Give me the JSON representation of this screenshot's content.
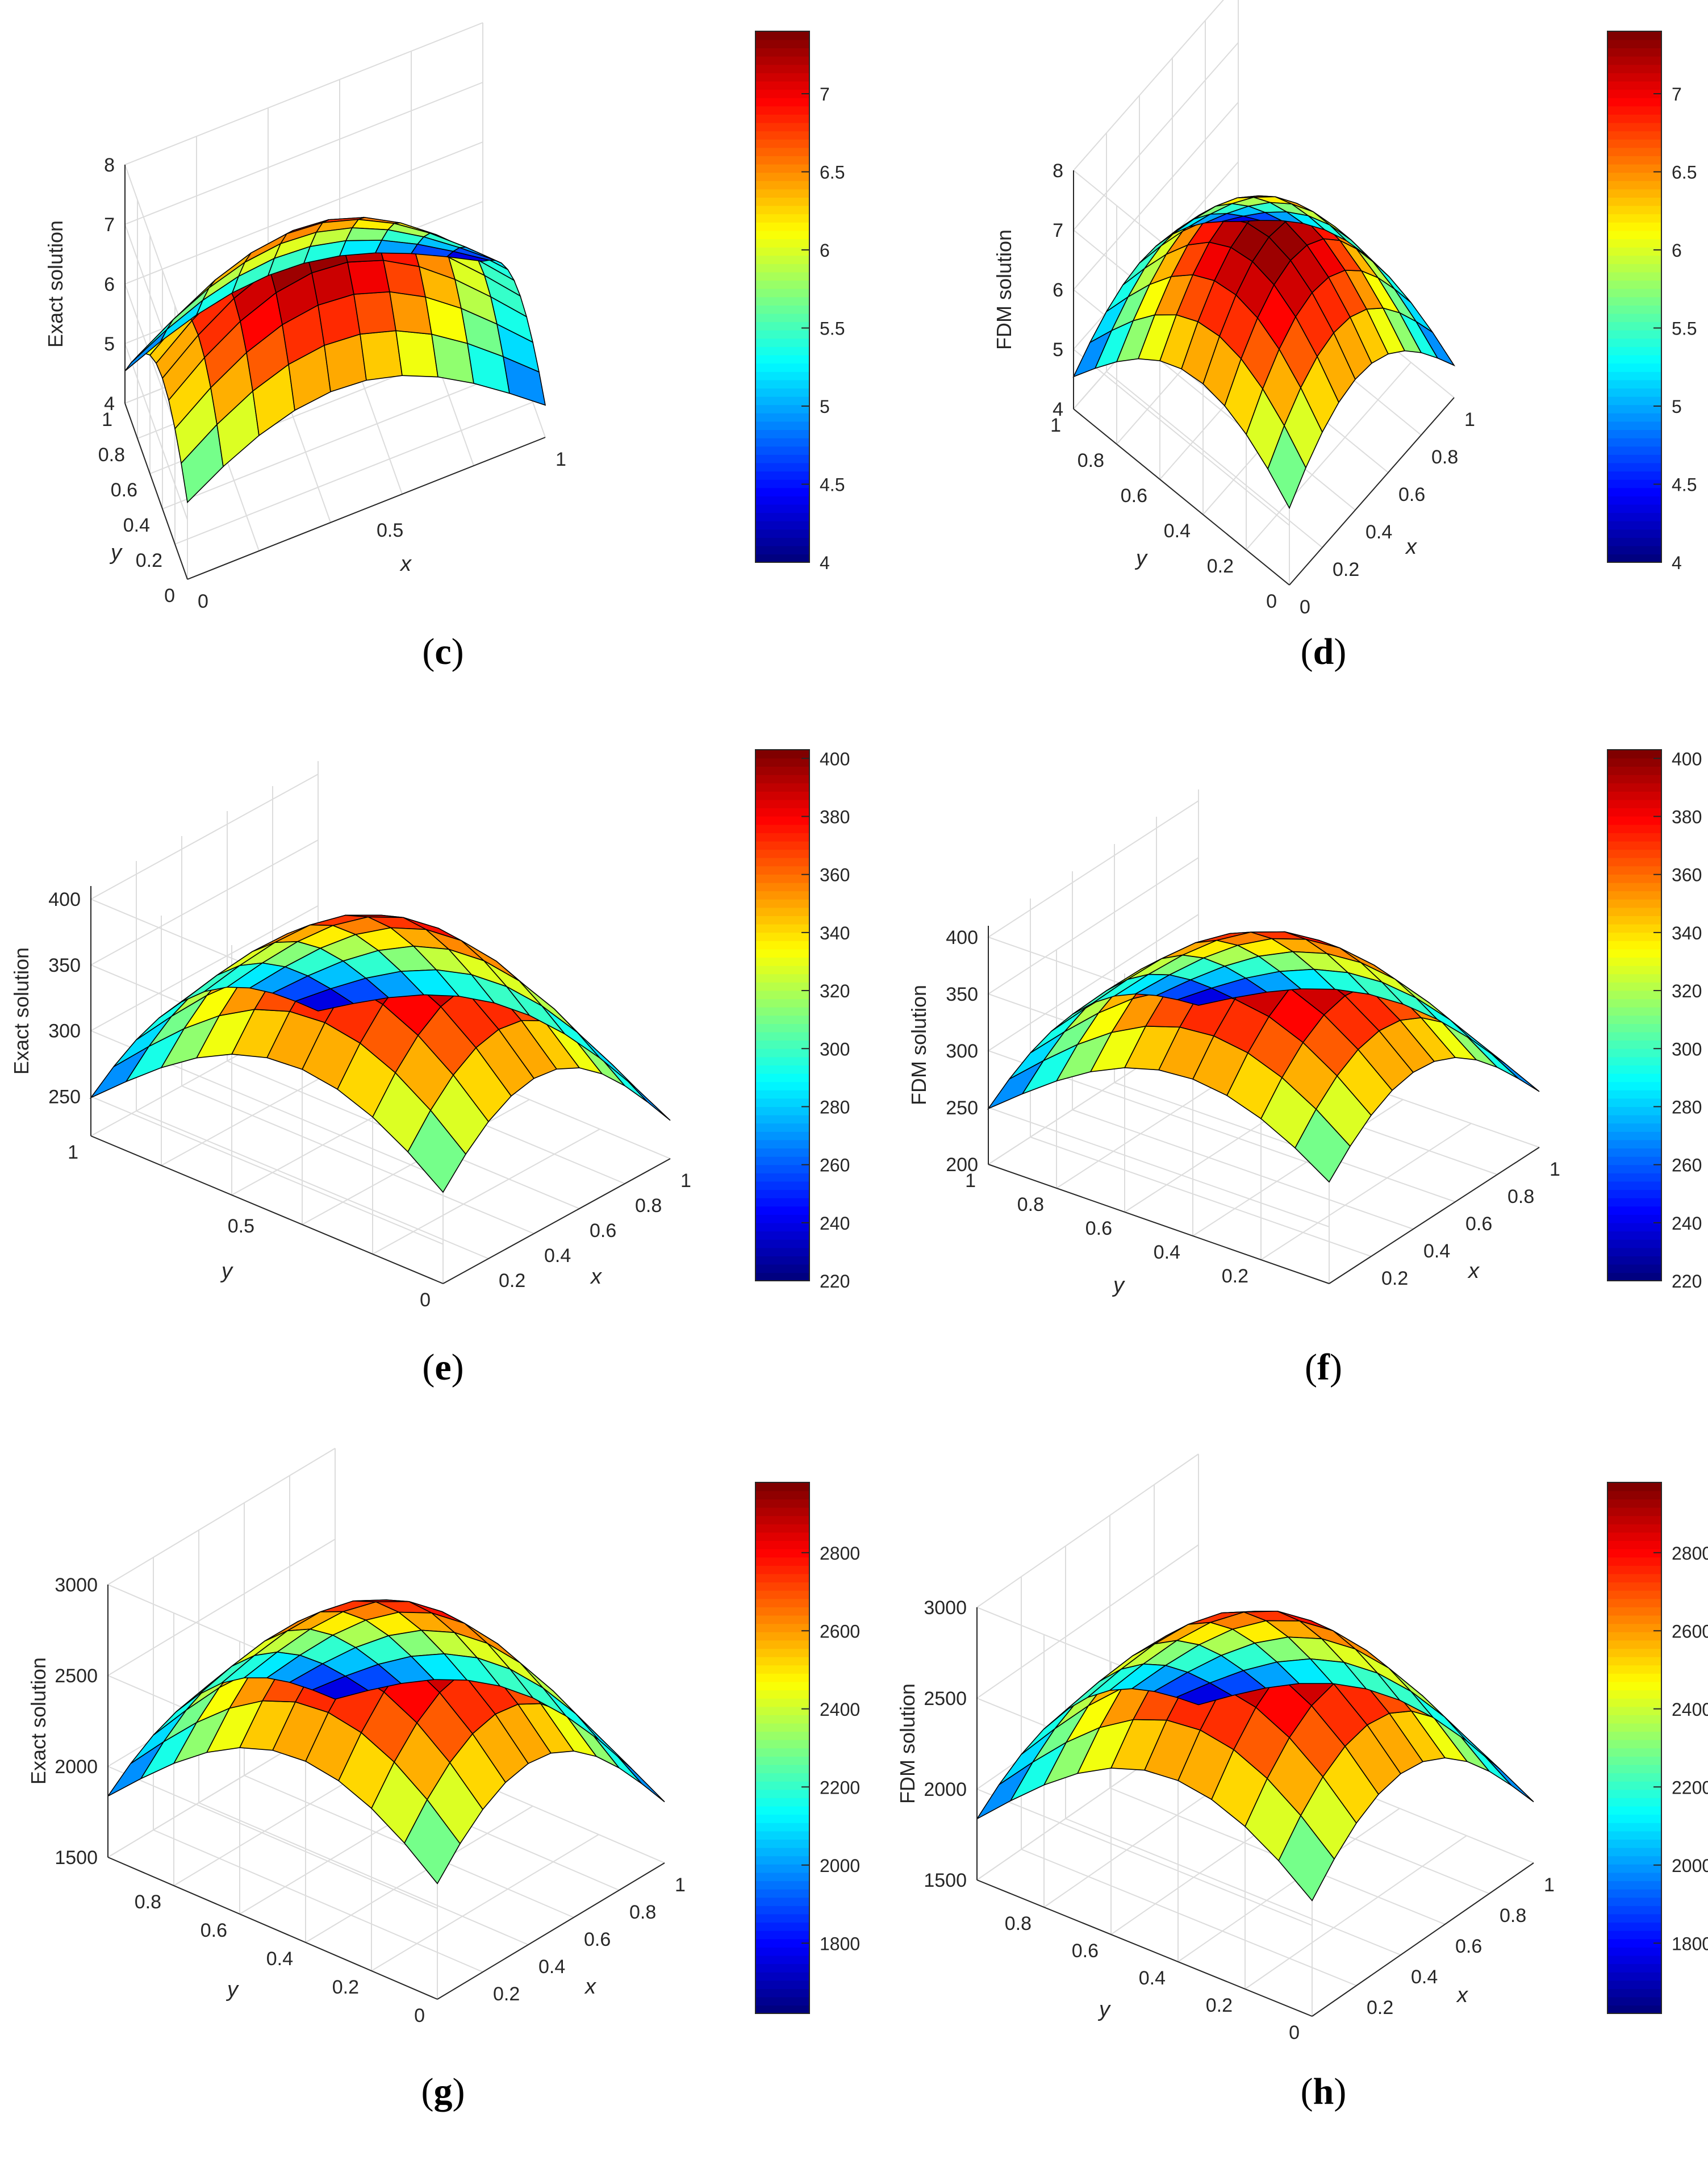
{
  "colors": {
    "axis": "#262626",
    "grid": "#dcdcdc",
    "edge": "#000000"
  },
  "colormap": "jet",
  "panels": [
    {
      "id": "c",
      "caption": "c",
      "zlabel": "Exact solution",
      "xlabel": "x",
      "ylabel": "y",
      "zticks": [
        "4",
        "5",
        "6",
        "7",
        "8"
      ],
      "xticks": [
        "0",
        "0.5",
        "1"
      ],
      "yticks": [
        "0",
        "0.2",
        "0.4",
        "0.6",
        "0.8",
        "1"
      ],
      "cbar_ticks": [
        "4",
        "4.5",
        "5",
        "5.5",
        "6",
        "6.5",
        "7"
      ]
    },
    {
      "id": "d",
      "caption": "d",
      "zlabel": "FDM solution",
      "xlabel": "x",
      "ylabel": "y",
      "zticks": [
        "4",
        "5",
        "6",
        "7",
        "8"
      ],
      "xticks": [
        "0",
        "0.2",
        "0.4",
        "0.6",
        "0.8",
        "1"
      ],
      "yticks": [
        "0",
        "0.2",
        "0.4",
        "0.6",
        "0.8",
        "1"
      ],
      "cbar_ticks": [
        "4",
        "4.5",
        "5",
        "5.5",
        "6",
        "6.5",
        "7"
      ]
    },
    {
      "id": "e",
      "caption": "e",
      "zlabel": "Exact solution",
      "xlabel": "x",
      "ylabel": "y",
      "zticks": [
        "250",
        "300",
        "350",
        "400"
      ],
      "xticks": [
        "0.2",
        "0.4",
        "0.6",
        "0.8",
        "1"
      ],
      "yticks": [
        "0",
        "0.5",
        "1"
      ],
      "cbar_ticks": [
        "220",
        "240",
        "260",
        "280",
        "300",
        "320",
        "340",
        "360",
        "380",
        "400"
      ]
    },
    {
      "id": "f",
      "caption": "f",
      "zlabel": "FDM solution",
      "xlabel": "x",
      "ylabel": "y",
      "zticks": [
        "200",
        "250",
        "300",
        "350",
        "400"
      ],
      "xticks": [
        "0.2",
        "0.4",
        "0.6",
        "0.8",
        "1"
      ],
      "yticks": [
        "0.2",
        "0.4",
        "0.6",
        "0.8",
        "1"
      ],
      "cbar_ticks": [
        "220",
        "240",
        "260",
        "280",
        "300",
        "320",
        "340",
        "360",
        "380",
        "400"
      ]
    },
    {
      "id": "g",
      "caption": "g",
      "zlabel": "Exact solution",
      "xlabel": "x",
      "ylabel": "y",
      "zticks": [
        "1500",
        "2000",
        "2500",
        "3000"
      ],
      "xticks": [
        "0.2",
        "0.4",
        "0.6",
        "0.8",
        "1"
      ],
      "yticks": [
        "0",
        "0.2",
        "0.4",
        "0.6",
        "0.8"
      ],
      "cbar_ticks": [
        "1800",
        "2000",
        "2200",
        "2400",
        "2600",
        "2800"
      ]
    },
    {
      "id": "h",
      "caption": "h",
      "zlabel": "FDM solution",
      "xlabel": "x",
      "ylabel": "y",
      "zticks": [
        "1500",
        "2000",
        "2500",
        "3000"
      ],
      "xticks": [
        "0.2",
        "0.4",
        "0.6",
        "0.8",
        "1"
      ],
      "yticks": [
        "0",
        "0.2",
        "0.4",
        "0.6",
        "0.8"
      ],
      "cbar_ticks": [
        "1800",
        "2000",
        "2200",
        "2400",
        "2600",
        "2800"
      ]
    }
  ],
  "chart_data": [
    {
      "type": "surface",
      "panel": "c",
      "zlabel": "Exact solution",
      "xlabel": "x",
      "ylabel": "y",
      "xlim": [
        0,
        1
      ],
      "ylim": [
        0,
        1
      ],
      "zlim": [
        4,
        8
      ],
      "grid": true,
      "grid_points": 11,
      "surface": "corners ~4, maximum ~7.4 at x=1, y=1 edge peak",
      "clim": [
        4,
        7.4
      ]
    },
    {
      "type": "surface",
      "panel": "d",
      "zlabel": "FDM solution",
      "xlabel": "x",
      "ylabel": "y",
      "xlim": [
        0,
        1
      ],
      "ylim": [
        0,
        1
      ],
      "zlim": [
        4,
        8
      ],
      "grid": true,
      "grid_points": 11,
      "clim": [
        4,
        7.4
      ]
    },
    {
      "type": "surface",
      "panel": "e",
      "zlabel": "Exact solution",
      "xlabel": "x",
      "ylabel": "y",
      "xlim": [
        0,
        1
      ],
      "ylim": [
        0,
        1
      ],
      "zlim": [
        220,
        410
      ],
      "grid": true,
      "grid_points": 11,
      "clim": [
        220,
        403
      ]
    },
    {
      "type": "surface",
      "panel": "f",
      "zlabel": "FDM solution",
      "xlabel": "x",
      "ylabel": "y",
      "xlim": [
        0,
        1
      ],
      "ylim": [
        0,
        1
      ],
      "zlim": [
        200,
        410
      ],
      "grid": true,
      "grid_points": 11,
      "clim": [
        220,
        403
      ]
    },
    {
      "type": "surface",
      "panel": "g",
      "zlabel": "Exact solution",
      "xlabel": "x",
      "ylabel": "y",
      "xlim": [
        0,
        1
      ],
      "ylim": [
        0,
        1
      ],
      "zlim": [
        1500,
        3000
      ],
      "grid": true,
      "grid_points": 11,
      "clim": [
        1620,
        2980
      ]
    },
    {
      "type": "surface",
      "panel": "h",
      "zlabel": "FDM solution",
      "xlabel": "x",
      "ylabel": "y",
      "xlim": [
        0,
        1
      ],
      "ylim": [
        0,
        1
      ],
      "zlim": [
        1500,
        3000
      ],
      "grid": true,
      "grid_points": 11,
      "clim": [
        1620,
        2980
      ]
    }
  ]
}
